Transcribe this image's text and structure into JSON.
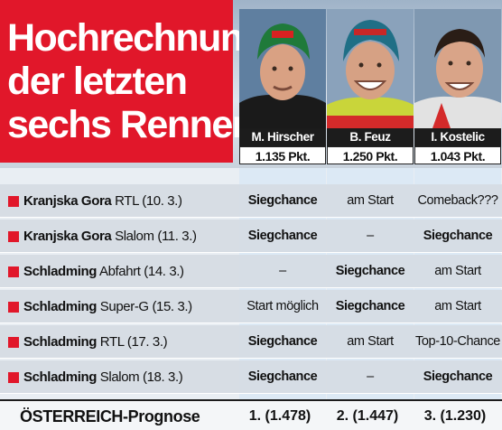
{
  "title": {
    "line1": "Hochrechnung",
    "line2": "der letzten",
    "line3": "sechs Rennen:"
  },
  "athletes": [
    {
      "name": "M. Hirscher",
      "points": "1.135 Pkt.",
      "prognosis": "1. (1.478)"
    },
    {
      "name": "B. Feuz",
      "points": "1.250 Pkt.",
      "prognosis": "2. (1.447)"
    },
    {
      "name": "I. Kostelic",
      "points": "1.043 Pkt.",
      "prognosis": "3. (1.230)"
    }
  ],
  "races": [
    {
      "place": "Kranjska Gora",
      "discipline": "RTL (10. 3.)",
      "hirscher": "Siegchance",
      "feuz": "am Start",
      "kostelic": "Comeback???"
    },
    {
      "place": "Kranjska Gora",
      "discipline": "Slalom (11. 3.)",
      "hirscher": "Siegchance",
      "feuz": "–",
      "kostelic": "Siegchance"
    },
    {
      "place": "Schladming",
      "discipline": "Abfahrt (14. 3.)",
      "hirscher": "–",
      "feuz": "Siegchance",
      "kostelic": "am Start"
    },
    {
      "place": "Schladming",
      "discipline": "Super-G (15. 3.)",
      "hirscher": "Start möglich",
      "feuz": "Siegchance",
      "kostelic": "am Start"
    },
    {
      "place": "Schladming",
      "discipline": "RTL (17. 3.)",
      "hirscher": "Siegchance",
      "feuz": "am Start",
      "kostelic": "Top-10-Chance"
    },
    {
      "place": "Schladming",
      "discipline": "Slalom (18. 3.)",
      "hirscher": "Siegchance",
      "feuz": "–",
      "kostelic": "Siegchance"
    }
  ],
  "footer": {
    "label": "ÖSTERREICH-Prognose"
  },
  "colors": {
    "accent": "#e1172a",
    "dark": "#1c1c1c",
    "highlight": "#d2e6f6"
  }
}
